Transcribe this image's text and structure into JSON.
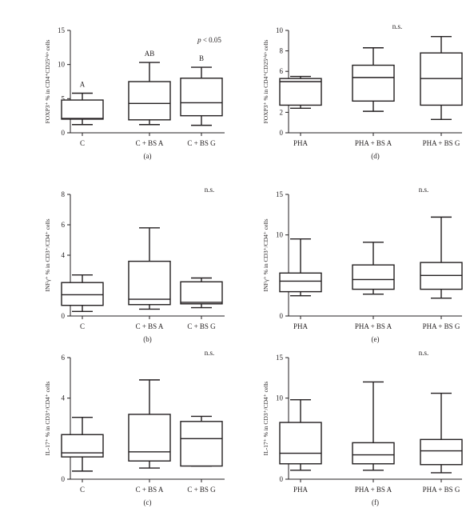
{
  "chart_data": [
    {
      "type": "box",
      "panel_label": "(a)",
      "ylabel": "FOXP3⁺ % in CD4⁺CD25ʰⁱᵍʰ cells",
      "ylim": [
        0,
        15
      ],
      "yticks": [
        0,
        5,
        10,
        15
      ],
      "categories": [
        "C",
        "C + BS A",
        "C + BS G"
      ],
      "boxes": [
        {
          "min": 1.2,
          "q1": 2.0,
          "median": 2.1,
          "q3": 4.8,
          "max": 5.8,
          "label": "A"
        },
        {
          "min": 1.2,
          "q1": 1.9,
          "median": 4.3,
          "q3": 7.5,
          "max": 10.3,
          "label": "AB"
        },
        {
          "min": 1.1,
          "q1": 2.5,
          "median": 4.4,
          "q3": 8.0,
          "max": 9.6,
          "label": "B"
        }
      ],
      "annotation": "p < 0.05"
    },
    {
      "type": "box",
      "panel_label": "(d)",
      "ylabel": "FOXP3⁺ % in CD4⁺CD25ʰⁱᵍʰ cells",
      "ylim": [
        0,
        10
      ],
      "yticks": [
        0,
        2,
        4,
        6,
        8,
        10
      ],
      "categories": [
        "PHA",
        "PHA + BS A",
        "PHA + BS G"
      ],
      "boxes": [
        {
          "min": 2.4,
          "q1": 2.7,
          "median": 5.0,
          "q3": 5.3,
          "max": 5.5
        },
        {
          "min": 2.1,
          "q1": 3.1,
          "median": 5.4,
          "q3": 6.6,
          "max": 8.3
        },
        {
          "min": 1.3,
          "q1": 2.7,
          "median": 5.3,
          "q3": 7.8,
          "max": 9.4
        }
      ],
      "annotation": "n.s."
    },
    {
      "type": "box",
      "panel_label": "(b)",
      "ylabel": "INFγ⁺ % in CD3⁺/CD4⁺ cells",
      "ylim": [
        0,
        8
      ],
      "yticks": [
        0,
        2,
        4,
        6,
        8
      ],
      "categories": [
        "C",
        "C + BS A",
        "C + BS G"
      ],
      "boxes": [
        {
          "min": 0.3,
          "q1": 0.7,
          "median": 1.4,
          "q3": 2.2,
          "max": 2.7
        },
        {
          "min": 0.45,
          "q1": 0.75,
          "median": 1.1,
          "q3": 3.6,
          "max": 5.8
        },
        {
          "min": 0.55,
          "q1": 0.8,
          "median": 0.9,
          "q3": 2.25,
          "max": 2.5
        }
      ],
      "annotation": "n.s."
    },
    {
      "type": "box",
      "panel_label": "(e)",
      "ylabel": "INFγ⁺ % in CD3⁺/CD4⁺ cells",
      "ylim": [
        0,
        15
      ],
      "yticks": [
        0,
        5,
        10,
        15
      ],
      "categories": [
        "PHA",
        "PHA + BS A",
        "PHA + BS G"
      ],
      "boxes": [
        {
          "min": 2.5,
          "q1": 3.0,
          "median": 4.3,
          "q3": 5.3,
          "max": 9.5
        },
        {
          "min": 2.7,
          "q1": 3.3,
          "median": 4.5,
          "q3": 6.3,
          "max": 9.1
        },
        {
          "min": 2.2,
          "q1": 3.3,
          "median": 5.0,
          "q3": 6.6,
          "max": 12.2
        }
      ],
      "annotation": "n.s."
    },
    {
      "type": "box",
      "panel_label": "(c)",
      "ylabel": "IL-17⁺ % in CD3⁺/CD4⁺ cells",
      "ylim": [
        0,
        6
      ],
      "yticks": [
        0,
        2,
        4,
        6
      ],
      "categories": [
        "C",
        "C + BS A",
        "C + BS G"
      ],
      "boxes": [
        {
          "min": 0.4,
          "q1": 1.1,
          "median": 1.3,
          "q3": 2.2,
          "max": 3.05
        },
        {
          "min": 0.55,
          "q1": 0.9,
          "median": 1.35,
          "q3": 3.2,
          "max": 4.9
        },
        {
          "min": 0.65,
          "q1": 0.65,
          "median": 2.0,
          "q3": 2.85,
          "max": 3.1
        }
      ],
      "annotation": "n.s."
    },
    {
      "type": "box",
      "panel_label": "(f)",
      "ylabel": "IL-17⁺ % in CD3⁺/CD4⁺ cells",
      "ylim": [
        0,
        15
      ],
      "yticks": [
        0,
        5,
        10,
        15
      ],
      "categories": [
        "PHA",
        "PHA + BS A",
        "PHA + BS G"
      ],
      "boxes": [
        {
          "min": 1.1,
          "q1": 1.9,
          "median": 3.2,
          "q3": 7.0,
          "max": 9.8
        },
        {
          "min": 1.1,
          "q1": 1.9,
          "median": 3.0,
          "q3": 4.5,
          "max": 12.0
        },
        {
          "min": 0.8,
          "q1": 1.8,
          "median": 3.5,
          "q3": 4.9,
          "max": 10.6
        }
      ],
      "annotation": "n.s."
    }
  ]
}
